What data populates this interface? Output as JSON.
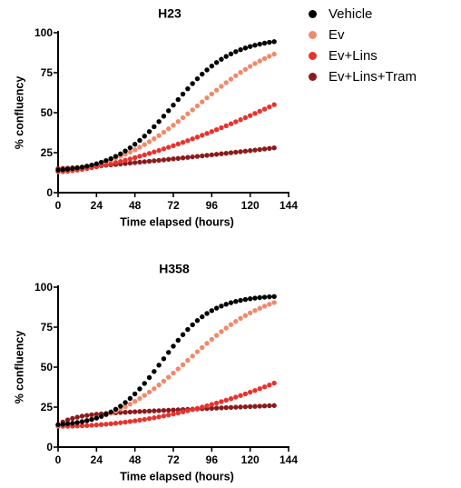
{
  "colors": {
    "Vehicle": "#000000",
    "Ev": "#f08a6c",
    "Ev+Lins": "#e8322e",
    "Ev+Lins+Tram": "#8b1a1a"
  },
  "legend": [
    "Vehicle",
    "Ev",
    "Ev+Lins",
    "Ev+Lins+Tram"
  ],
  "chart_data": [
    {
      "type": "scatter",
      "title": "H23",
      "xlabel": "Time elapsed (hours)",
      "ylabel": "% confluency",
      "xlim": [
        0,
        144
      ],
      "ylim": [
        0,
        100
      ],
      "xticks": [
        0,
        24,
        48,
        72,
        96,
        120,
        144
      ],
      "yticks": [
        0,
        25,
        50,
        75,
        100
      ],
      "x_step": 3,
      "x_range": [
        0,
        135
      ],
      "legend_position": "top-right",
      "series": [
        {
          "name": "Vehicle",
          "curve": "logistic",
          "start": 14,
          "max": 97,
          "mid": 72,
          "rate": 0.055
        },
        {
          "name": "Ev",
          "curve": "logistic",
          "start": 13.5,
          "max": 100,
          "mid": 88,
          "rate": 0.037
        },
        {
          "name": "Ev+Lins",
          "curve": "power",
          "start": 13,
          "end": 55,
          "exponent": 1.5
        },
        {
          "name": "Ev+Lins+Tram",
          "curve": "power",
          "start": 15,
          "end": 28,
          "exponent": 1.2
        }
      ]
    },
    {
      "type": "scatter",
      "title": "H358",
      "xlabel": "Time elapsed (hours)",
      "ylabel": "% confluency",
      "xlim": [
        0,
        144
      ],
      "ylim": [
        0,
        100
      ],
      "xticks": [
        0,
        24,
        48,
        72,
        96,
        120,
        144
      ],
      "yticks": [
        0,
        25,
        50,
        75,
        100
      ],
      "x_step": 3,
      "x_range": [
        0,
        135
      ],
      "series": [
        {
          "name": "Vehicle",
          "curve": "logistic",
          "start": 14,
          "max": 95,
          "mid": 65,
          "rate": 0.065
        },
        {
          "name": "Ev",
          "curve": "logistic",
          "start": 13.5,
          "max": 100,
          "mid": 82,
          "rate": 0.04
        },
        {
          "name": "Ev+Lins",
          "curve": "power",
          "start": 13,
          "end": 40,
          "exponent": 2.0
        },
        {
          "name": "Ev+Lins+Tram",
          "curve": "saturating",
          "start": 14,
          "plateau": 20,
          "plateau_rate": 0.1,
          "end": 26
        }
      ]
    }
  ]
}
